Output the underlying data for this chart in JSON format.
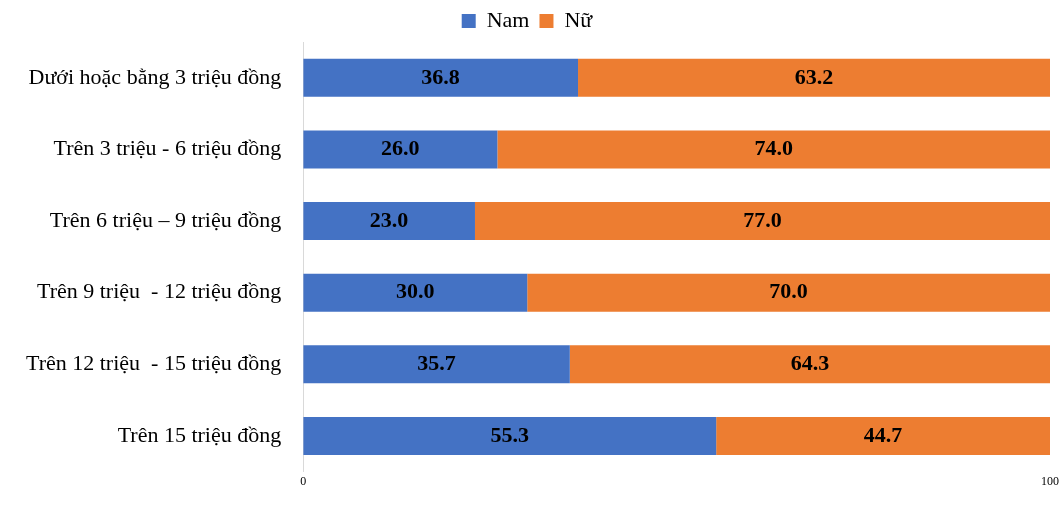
{
  "chart_data": {
    "type": "bar",
    "orientation": "horizontal",
    "stacked": true,
    "categories": [
      "Dưới hoặc bằng 3 triệu đồng",
      "Trên 3 triệu - 6 triệu đồng",
      "Trên 6 triệu – 9 triệu đồng",
      "Trên 9 triệu  - 12 triệu đồng",
      "Trên 12 triệu  - 15 triệu đồng",
      "Trên 15 triệu đồng"
    ],
    "series": [
      {
        "name": "Nam",
        "color": "#4472c4",
        "values": [
          36.8,
          26.0,
          23.0,
          30.0,
          35.7,
          55.3
        ],
        "value_labels": [
          "36.8",
          "26.0",
          "23.0",
          "30.0",
          "35.7",
          "55.3"
        ]
      },
      {
        "name": "Nữ",
        "color": "#ed7d31",
        "values": [
          63.2,
          74.0,
          77.0,
          70.0,
          64.3,
          44.7
        ],
        "value_labels": [
          "63.2",
          "74.0",
          "77.0",
          "70.0",
          "64.3",
          "44.7"
        ]
      }
    ],
    "xlim": [
      0,
      100
    ],
    "xticks": [
      0,
      100
    ],
    "grid": false,
    "legend": "top",
    "data_labels": true
  }
}
